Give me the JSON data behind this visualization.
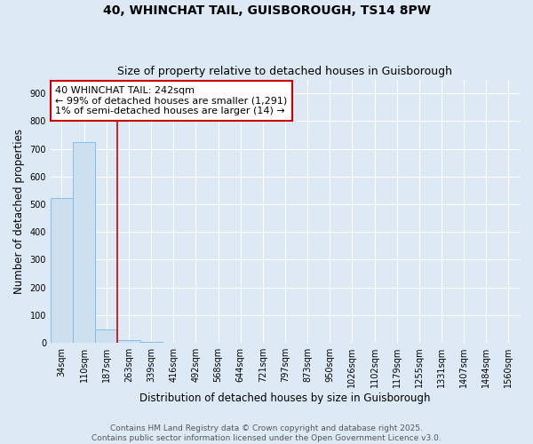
{
  "title": "40, WHINCHAT TAIL, GUISBOROUGH, TS14 8PW",
  "subtitle": "Size of property relative to detached houses in Guisborough",
  "xlabel": "Distribution of detached houses by size in Guisborough",
  "ylabel": "Number of detached properties",
  "categories": [
    "34sqm",
    "110sqm",
    "187sqm",
    "263sqm",
    "339sqm",
    "416sqm",
    "492sqm",
    "568sqm",
    "644sqm",
    "721sqm",
    "797sqm",
    "873sqm",
    "950sqm",
    "1026sqm",
    "1102sqm",
    "1179sqm",
    "1255sqm",
    "1331sqm",
    "1407sqm",
    "1484sqm",
    "1560sqm"
  ],
  "values": [
    522,
    725,
    47,
    10,
    3,
    1,
    0,
    0,
    0,
    0,
    0,
    0,
    0,
    0,
    0,
    0,
    0,
    0,
    0,
    0,
    0
  ],
  "bar_color": "#cce0f0",
  "bar_edgecolor": "#7ab8e8",
  "background_color": "#ddeaf6",
  "grid_color": "#ffffff",
  "red_line_x": 2.5,
  "annotation_text": "40 WHINCHAT TAIL: 242sqm\n← 99% of detached houses are smaller (1,291)\n1% of semi-detached houses are larger (14) →",
  "annotation_box_color": "#cc0000",
  "ylim": [
    0,
    950
  ],
  "yticks": [
    0,
    100,
    200,
    300,
    400,
    500,
    600,
    700,
    800,
    900
  ],
  "footer_line1": "Contains HM Land Registry data © Crown copyright and database right 2025.",
  "footer_line2": "Contains public sector information licensed under the Open Government Licence v3.0.",
  "title_fontsize": 10,
  "subtitle_fontsize": 9,
  "axis_label_fontsize": 8.5,
  "tick_fontsize": 7,
  "annotation_fontsize": 8,
  "footer_fontsize": 6.5
}
